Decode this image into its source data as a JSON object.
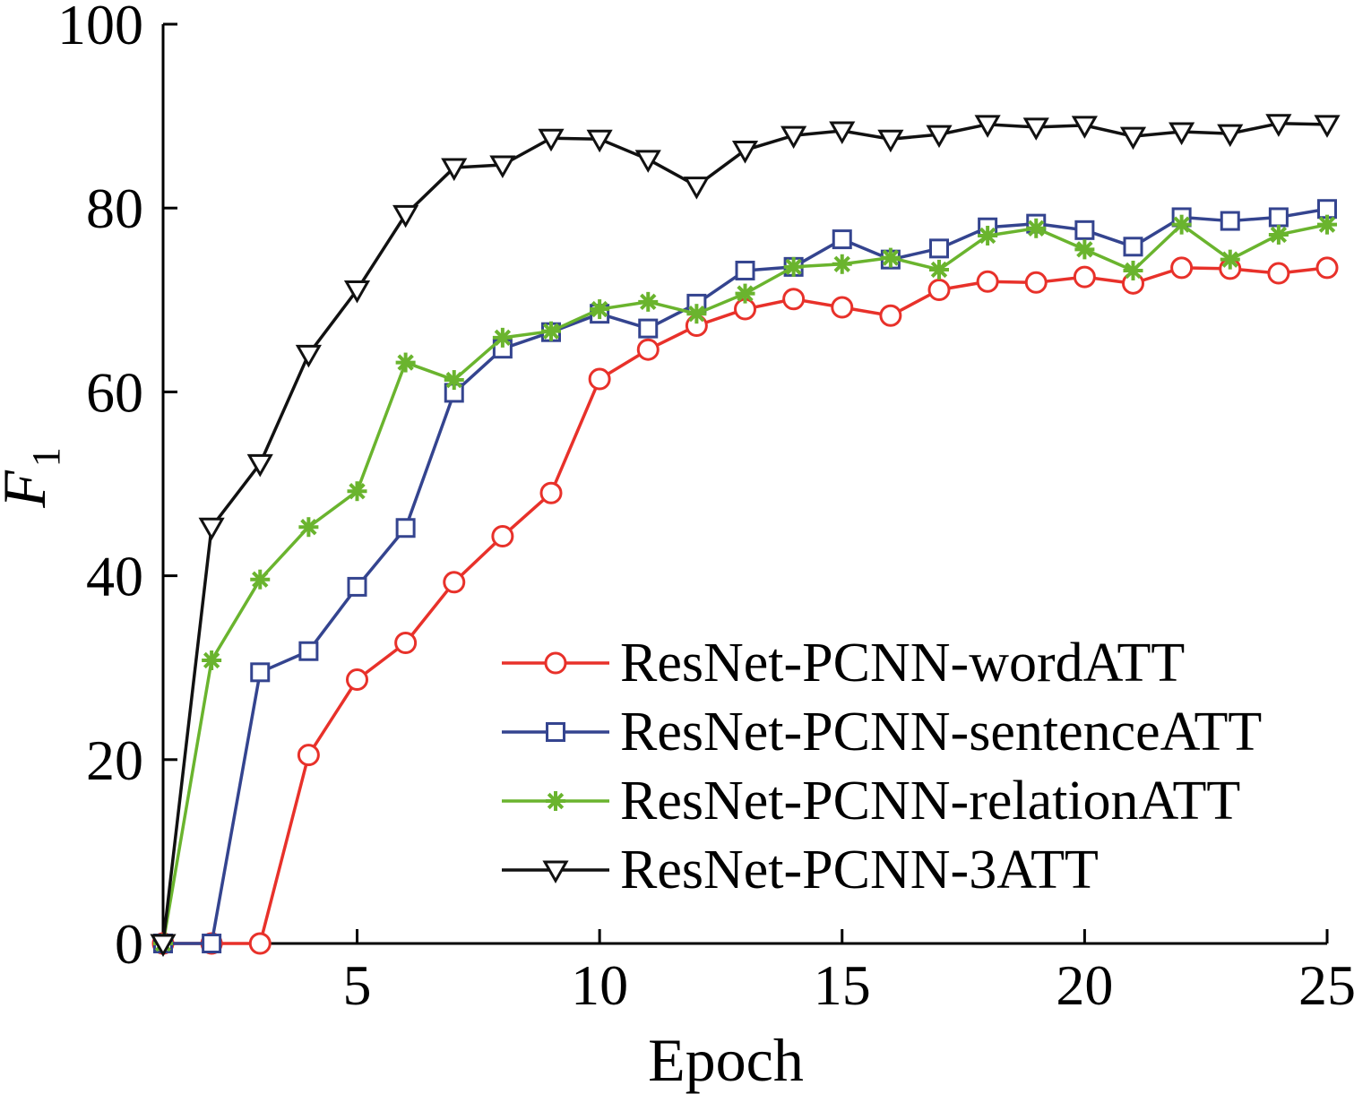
{
  "chart_data": {
    "type": "line",
    "title": "",
    "xlabel": "Epoch",
    "ylabel": {
      "main": "F",
      "subscript": "1"
    },
    "xlim": [
      1,
      25
    ],
    "ylim": [
      0,
      100
    ],
    "xticks": [
      5,
      10,
      15,
      20,
      25
    ],
    "yticks": [
      0,
      20,
      40,
      60,
      80,
      100
    ],
    "grid": false,
    "legend_position": "bottom-right",
    "x": [
      1,
      2,
      3,
      4,
      5,
      6,
      7,
      8,
      9,
      10,
      11,
      12,
      13,
      14,
      15,
      16,
      17,
      18,
      19,
      20,
      21,
      22,
      23,
      24,
      25
    ],
    "series": [
      {
        "name": "ResNet-PCNN-wordATT",
        "color": "#e8312a",
        "marker": "circle",
        "values": [
          0,
          0,
          0,
          20.5,
          28.7,
          32.7,
          39.3,
          44.3,
          49,
          61.4,
          64.6,
          67.2,
          69,
          70.1,
          69.2,
          68.3,
          71.1,
          72,
          71.9,
          72.5,
          71.8,
          73.5,
          73.4,
          72.9,
          73.5
        ]
      },
      {
        "name": "ResNet-PCNN-sentenceATT",
        "color": "#34448f",
        "marker": "square",
        "values": [
          0,
          0,
          29.5,
          31.8,
          38.8,
          45.2,
          59.9,
          64.7,
          66.5,
          68.5,
          66.9,
          69.6,
          73.2,
          73.6,
          76.6,
          74.4,
          75.6,
          77.9,
          78.3,
          77.6,
          75.8,
          79,
          78.6,
          79,
          79.9
        ]
      },
      {
        "name": "ResNet-PCNN-relationATT",
        "color": "#6ab42e",
        "marker": "asterisk",
        "values": [
          0,
          30.8,
          39.6,
          45.3,
          49.2,
          63.2,
          61.3,
          65.9,
          66.6,
          69,
          69.8,
          68.5,
          70.7,
          73.6,
          73.9,
          74.6,
          73.3,
          77,
          77.8,
          75.5,
          73.2,
          78.2,
          74.4,
          77.1,
          78.2
        ]
      },
      {
        "name": "ResNet-PCNN-3ATT",
        "color": "#111111",
        "marker": "triangle-down",
        "values": [
          0,
          45.3,
          52.2,
          64.1,
          71.1,
          79.3,
          84.4,
          84.7,
          87.6,
          87.5,
          85.3,
          82.4,
          86.3,
          87.9,
          88.4,
          87.5,
          88,
          89.1,
          88.8,
          89,
          87.8,
          88.3,
          88.1,
          89.2,
          89.1
        ]
      }
    ]
  }
}
